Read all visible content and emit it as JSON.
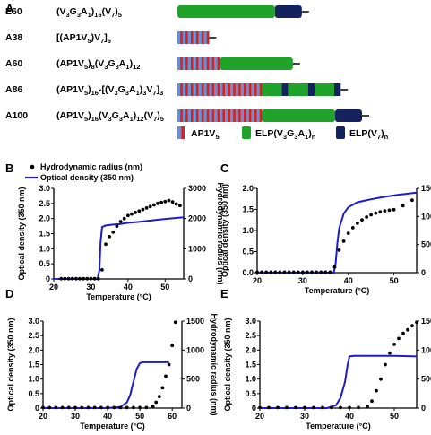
{
  "panel_a": {
    "letter": "A",
    "constructs": [
      {
        "name": "E60",
        "formula": [
          [
            "(V",
            ""
          ],
          [
            "3",
            "sub"
          ],
          [
            "G",
            ""
          ],
          [
            "3",
            "sub"
          ],
          [
            "A",
            ""
          ],
          [
            "1",
            "sub"
          ],
          [
            ")",
            ""
          ],
          [
            "16",
            "sub"
          ],
          [
            "(V",
            ""
          ],
          [
            "7",
            "sub"
          ],
          [
            ")",
            ""
          ],
          [
            "5",
            "sub"
          ]
        ],
        "segments": [
          {
            "type": "elp",
            "units": 16
          },
          {
            "type": "v7",
            "units": 5
          }
        ]
      },
      {
        "name": "A38",
        "formula": [
          [
            "[(AP1V",
            ""
          ],
          [
            "5",
            "sub"
          ],
          [
            ")V",
            ""
          ],
          [
            "7",
            "sub"
          ],
          [
            "]",
            ""
          ],
          [
            "6",
            "sub"
          ]
        ],
        "segments": [
          {
            "type": "ap1v5",
            "units": 6
          }
        ]
      },
      {
        "name": "A60",
        "formula": [
          [
            "(AP1V",
            ""
          ],
          [
            "5",
            "sub"
          ],
          [
            ")",
            ""
          ],
          [
            "8",
            "sub"
          ],
          [
            "(V",
            ""
          ],
          [
            "3",
            "sub"
          ],
          [
            "G",
            ""
          ],
          [
            "3",
            "sub"
          ],
          [
            "A",
            ""
          ],
          [
            "1",
            "sub"
          ],
          [
            ")",
            ""
          ],
          [
            "12",
            "sub"
          ]
        ],
        "segments": [
          {
            "type": "ap1v5",
            "units": 8
          },
          {
            "type": "elp",
            "units": 12
          }
        ]
      },
      {
        "name": "A86",
        "formula": [
          [
            "(AP1V",
            ""
          ],
          [
            "5",
            "sub"
          ],
          [
            ")",
            ""
          ],
          [
            "16",
            "sub"
          ],
          [
            "-[(V",
            ""
          ],
          [
            "3",
            "sub"
          ],
          [
            "G",
            ""
          ],
          [
            "3",
            "sub"
          ],
          [
            "A",
            ""
          ],
          [
            "1",
            "sub"
          ],
          [
            ")",
            ""
          ],
          [
            "3",
            "sub"
          ],
          [
            "V",
            ""
          ],
          [
            "7",
            "sub"
          ],
          [
            "]",
            ""
          ],
          [
            "3",
            "sub"
          ]
        ],
        "segments": [
          {
            "type": "ap1v5",
            "units": 16
          },
          {
            "type": "elp_v7_repeat",
            "units": 3
          }
        ]
      },
      {
        "name": "A100",
        "formula": [
          [
            "(AP1V",
            ""
          ],
          [
            "5",
            "sub"
          ],
          [
            ")",
            ""
          ],
          [
            "16",
            "sub"
          ],
          [
            "(V",
            ""
          ],
          [
            "3",
            "sub"
          ],
          [
            "G",
            ""
          ],
          [
            "3",
            "sub"
          ],
          [
            "A",
            ""
          ],
          [
            "1",
            "sub"
          ],
          [
            ")",
            ""
          ],
          [
            "12",
            "sub"
          ],
          [
            "(V",
            ""
          ],
          [
            "7",
            "sub"
          ],
          [
            ")",
            ""
          ],
          [
            "5",
            "sub"
          ]
        ],
        "segments": [
          {
            "type": "ap1v5",
            "units": 16
          },
          {
            "type": "elp",
            "units": 12
          },
          {
            "type": "v7",
            "units": 5
          }
        ]
      }
    ],
    "legend": [
      {
        "key": "ap1v5",
        "parts": [
          [
            "AP1V",
            ""
          ],
          [
            "5",
            "sub"
          ]
        ]
      },
      {
        "key": "elp",
        "parts": [
          [
            "ELP(V",
            ""
          ],
          [
            "3",
            "sub"
          ],
          [
            "G",
            ""
          ],
          [
            "3",
            "sub"
          ],
          [
            "A",
            ""
          ],
          [
            "1",
            "sub"
          ],
          [
            ")",
            ""
          ],
          [
            "n",
            "sub"
          ]
        ]
      },
      {
        "key": "v7",
        "parts": [
          [
            "ELP(V",
            ""
          ],
          [
            "7",
            "sub"
          ],
          [
            ")",
            ""
          ],
          [
            "n",
            "sub"
          ]
        ]
      }
    ],
    "colors": {
      "elp": "#1fa32b",
      "v7": "#14235e",
      "ap1_red": "#d92020",
      "ap1_blue": "#6b8fd0",
      "linker": "#000000"
    }
  },
  "plot_colors": {
    "od_line": "#1c1cc8",
    "dots": "#000000"
  },
  "chart_data": [
    {
      "panel": "B",
      "type": "line",
      "legend": [
        "Hydrodynamic radius (nm)",
        "Optical density (350 nm)"
      ],
      "legend_position": "top-left",
      "xlabel": "Temperature (°C)",
      "ylabel_left": "Optical density (350 nm)",
      "ylabel_right": "Hydrodynamic radius (nm)",
      "xlim": [
        20,
        55
      ],
      "xticks": [
        20,
        30,
        40,
        50
      ],
      "ylim_left": [
        0,
        3.0
      ],
      "yticks_left": [
        "0",
        "0.5",
        "1.0",
        "1.5",
        "2.0",
        "2.5",
        "3.0"
      ],
      "ylim_right": [
        0,
        3000
      ],
      "yticks_right": [
        "0",
        "1000",
        "2000",
        "3000"
      ],
      "od": {
        "x": [
          20,
          31.8,
          32.3,
          32.6,
          33.0,
          34,
          36,
          38,
          40,
          42,
          45,
          48,
          51,
          55
        ],
        "y": [
          0,
          0,
          0.3,
          1.2,
          1.72,
          1.77,
          1.8,
          1.82,
          1.86,
          1.88,
          1.92,
          1.96,
          2.0,
          2.04
        ]
      },
      "radius": {
        "x": [
          22,
          23,
          24,
          25,
          26,
          27,
          28,
          29,
          30,
          31,
          32,
          33,
          34,
          35,
          36,
          37,
          38,
          39,
          40,
          41,
          42,
          43,
          44,
          45,
          46,
          47,
          48,
          49,
          50,
          51,
          52,
          53,
          54
        ],
        "y": [
          10,
          10,
          10,
          10,
          10,
          10,
          10,
          10,
          10,
          10,
          10,
          300,
          1150,
          1400,
          1550,
          1750,
          1900,
          2000,
          2100,
          2150,
          2200,
          2250,
          2300,
          2350,
          2400,
          2450,
          2500,
          2530,
          2560,
          2600,
          2550,
          2480,
          2430
        ]
      }
    },
    {
      "panel": "C",
      "type": "line",
      "xlabel": "Temperature (°C)",
      "ylabel_left": "Optical density (350 nm)",
      "ylabel_right": "Hydrodynamic radius (nm)",
      "xlim": [
        20,
        55
      ],
      "xticks": [
        20,
        30,
        40,
        50
      ],
      "ylim_left": [
        0,
        2.0
      ],
      "yticks_left": [
        "0.0",
        "0.5",
        "1.0",
        "1.5",
        "2.0"
      ],
      "ylim_right": [
        0,
        1500
      ],
      "yticks_right": [
        "0",
        "500",
        "1000",
        "1500"
      ],
      "od": {
        "x": [
          20,
          36.8,
          37.2,
          37.6,
          38.0,
          39,
          40,
          42,
          45,
          48,
          51,
          55
        ],
        "y": [
          0,
          0,
          0.2,
          0.7,
          1.05,
          1.4,
          1.55,
          1.67,
          1.74,
          1.8,
          1.85,
          1.9
        ]
      },
      "radius": {
        "x": [
          20,
          21,
          22,
          23,
          24,
          25,
          26,
          27,
          28,
          29,
          30,
          31,
          32,
          33,
          34,
          35,
          36,
          37,
          38,
          39,
          40,
          41,
          42,
          43,
          44,
          45,
          46,
          47,
          48,
          49,
          50,
          52,
          54
        ],
        "y": [
          10,
          10,
          10,
          10,
          10,
          10,
          10,
          10,
          10,
          10,
          10,
          10,
          10,
          10,
          10,
          10,
          10,
          100,
          400,
          560,
          700,
          800,
          880,
          940,
          990,
          1030,
          1060,
          1080,
          1100,
          1110,
          1120,
          1190,
          1290
        ]
      }
    },
    {
      "panel": "D",
      "type": "line",
      "xlabel": "Temperature (°C)",
      "ylabel_left": "Optical density (350 nm)",
      "ylabel_right": "Hydrodynamic radius (nm)",
      "xlim": [
        20,
        63
      ],
      "xticks": [
        20,
        30,
        40,
        50,
        60
      ],
      "ylim_left": [
        0,
        3.0
      ],
      "yticks_left": [
        "0",
        "0.5",
        "1.0",
        "1.5",
        "2.0",
        "2.5",
        "3.0"
      ],
      "ylim_right": [
        0,
        1500
      ],
      "yticks_right": [
        "0",
        "500",
        "1000",
        "1500"
      ],
      "od": {
        "x": [
          20,
          40,
          44,
          46,
          47,
          48,
          49,
          50,
          51,
          55,
          59
        ],
        "y": [
          0,
          0,
          0.04,
          0.2,
          0.45,
          0.9,
          1.35,
          1.55,
          1.58,
          1.58,
          1.58
        ]
      },
      "radius": {
        "x": [
          20,
          22,
          24,
          26,
          28,
          30,
          32,
          34,
          36,
          38,
          40,
          42,
          44,
          46,
          48,
          50,
          52,
          54,
          55,
          56,
          57,
          58,
          59,
          60,
          61
        ],
        "y": [
          10,
          10,
          10,
          10,
          10,
          10,
          10,
          10,
          10,
          10,
          10,
          10,
          10,
          10,
          10,
          10,
          10,
          30,
          100,
          200,
          350,
          550,
          750,
          1080,
          1480
        ]
      }
    },
    {
      "panel": "E",
      "type": "line",
      "xlabel": "Temperature (°C)",
      "ylabel_left": "Optical density (350 nm)",
      "ylabel_right": "Hydrodynamic radius (nm)",
      "xlim": [
        20,
        55
      ],
      "xticks": [
        20,
        30,
        40,
        50
      ],
      "ylim_left": [
        0,
        3.0
      ],
      "yticks_left": [
        "0",
        "0.5",
        "1.0",
        "1.5",
        "2.0",
        "2.5",
        "3.0"
      ],
      "ylim_right": [
        0,
        1500
      ],
      "yticks_right": [
        "0",
        "500",
        "1000",
        "1500"
      ],
      "od": {
        "x": [
          20,
          35,
          37,
          38,
          39,
          39.6,
          40.0,
          41,
          45,
          50,
          55
        ],
        "y": [
          0,
          0,
          0.1,
          0.35,
          0.9,
          1.5,
          1.78,
          1.8,
          1.8,
          1.8,
          1.78
        ]
      },
      "radius": {
        "x": [
          20,
          22,
          24,
          26,
          28,
          30,
          32,
          34,
          36,
          38,
          40,
          42,
          44,
          45,
          46,
          47,
          48,
          49,
          50,
          51,
          52,
          53,
          54,
          55
        ],
        "y": [
          10,
          10,
          10,
          10,
          10,
          10,
          10,
          10,
          10,
          10,
          10,
          10,
          30,
          120,
          300,
          500,
          750,
          950,
          1100,
          1200,
          1290,
          1350,
          1420,
          1480
        ]
      }
    }
  ]
}
